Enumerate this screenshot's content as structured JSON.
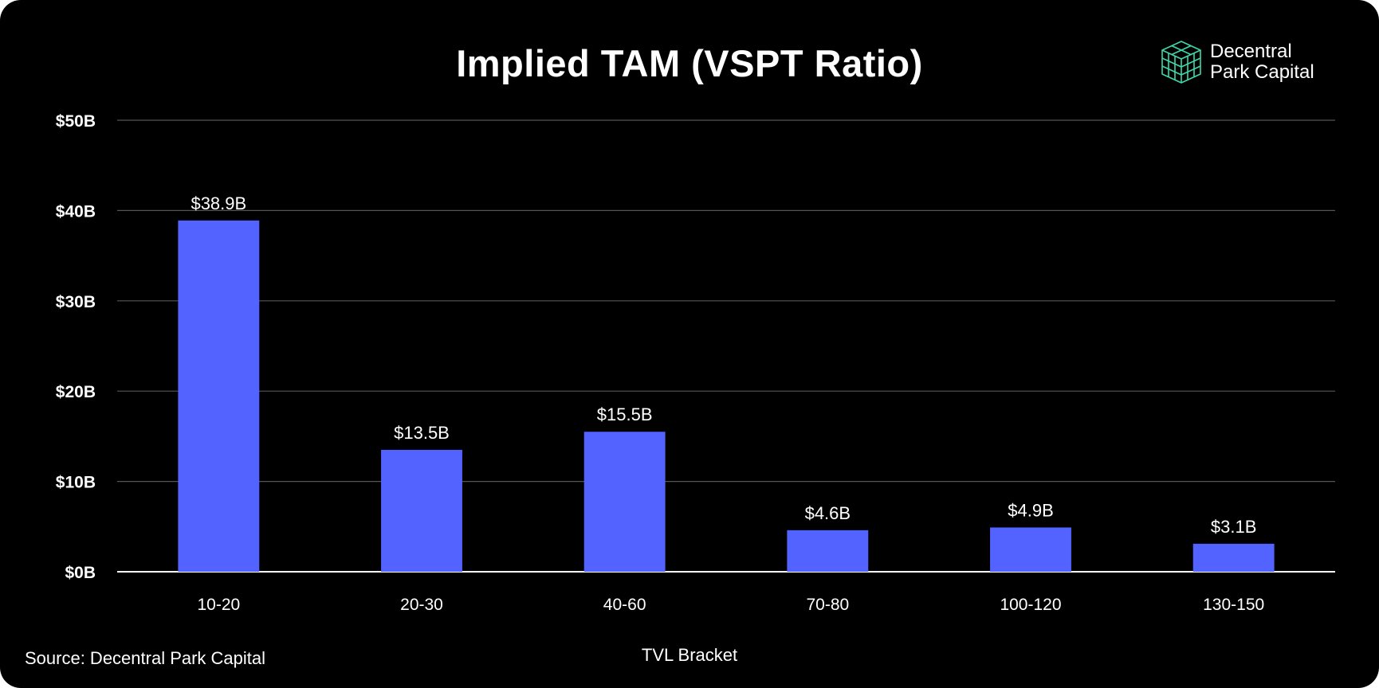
{
  "colors": {
    "background": "#000000",
    "bar": "#5363FF",
    "gridline": "#555555",
    "text": "#ffffff",
    "logo_accent": "#3FD7A8"
  },
  "logo": {
    "icon": "cube-stack-icon",
    "line1": "Decentral",
    "line2": "Park Capital"
  },
  "source": "Source: Decentral Park Capital",
  "chart_data": {
    "type": "bar",
    "title": "Implied TAM (VSPT Ratio)",
    "xlabel": "TVL Bracket",
    "ylabel": "",
    "categories": [
      "10-20",
      "20-30",
      "40-60",
      "70-80",
      "100-120",
      "130-150"
    ],
    "values": [
      38.9,
      13.5,
      15.5,
      4.6,
      4.9,
      3.1
    ],
    "data_labels": [
      "$38.9B",
      "$13.5B",
      "$15.5B",
      "$4.6B",
      "$4.9B",
      "$3.1B"
    ],
    "ylim": [
      0,
      50
    ],
    "y_ticks": [
      0,
      10,
      20,
      30,
      40,
      50
    ],
    "y_tick_labels": [
      "$0B",
      "$10B",
      "$20B",
      "$30B",
      "$40B",
      "$50B"
    ],
    "grid": true,
    "legend": "none"
  }
}
